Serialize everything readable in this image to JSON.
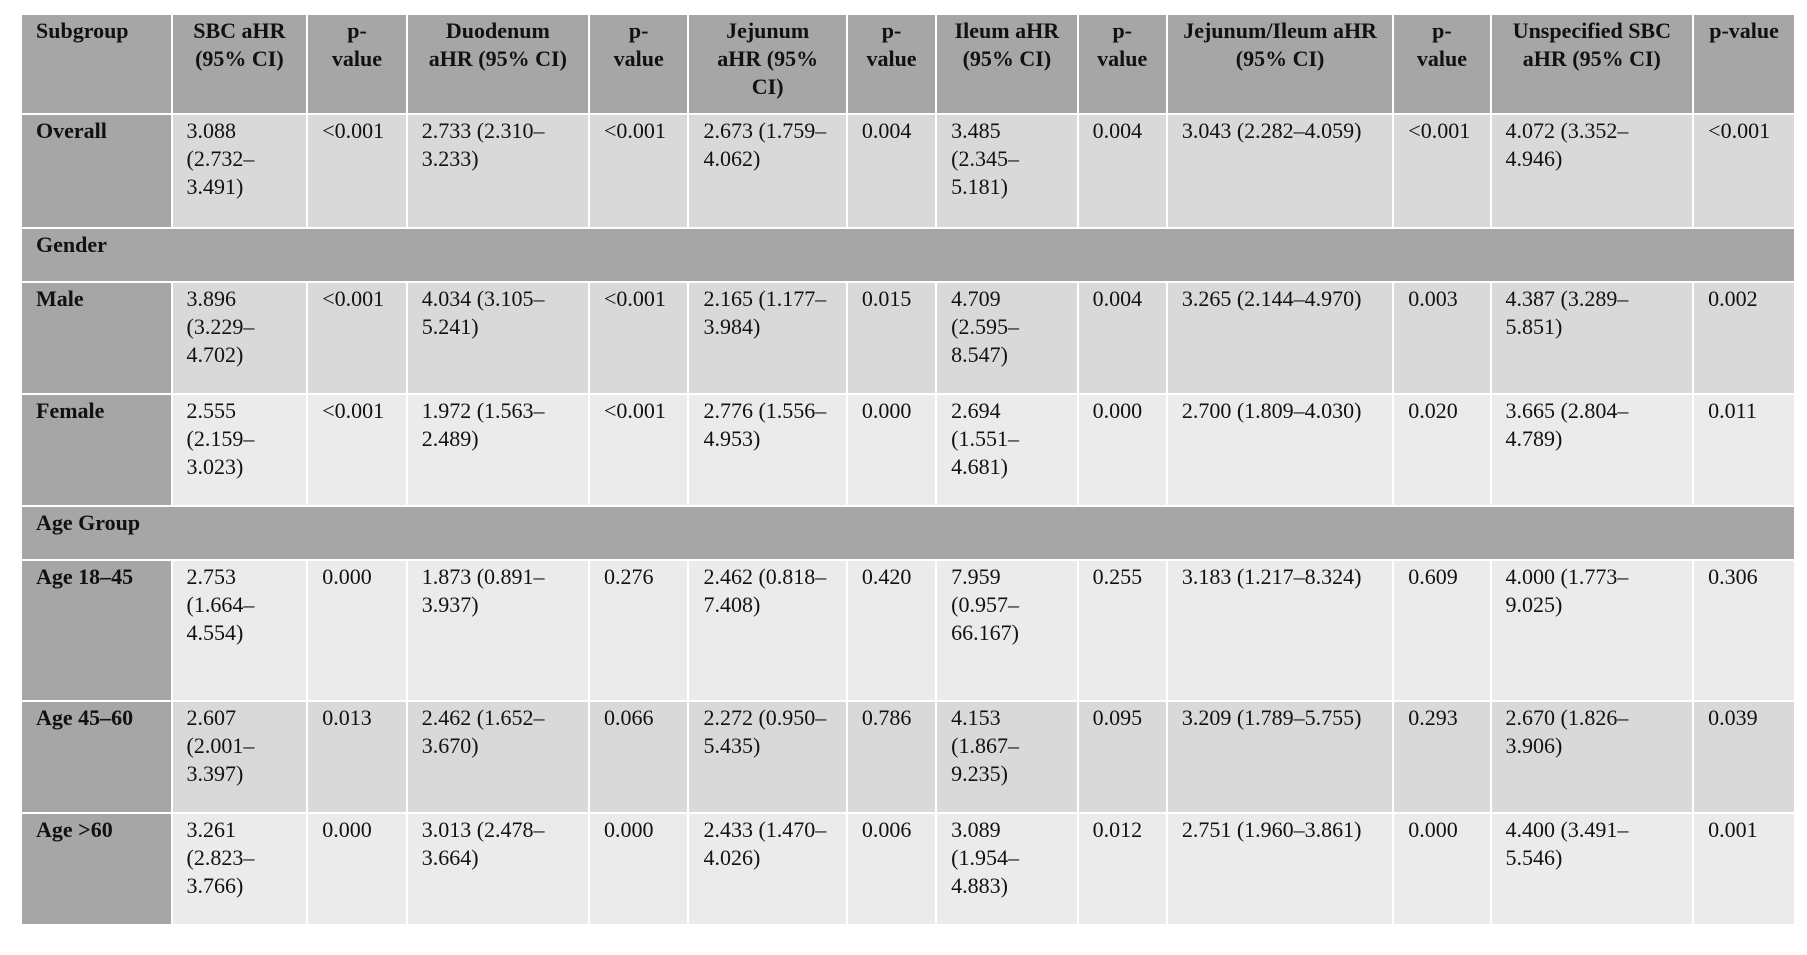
{
  "headers": [
    "Subgroup",
    "SBC aHR (95% CI)",
    "p-value",
    "Duodenum aHR (95% CI)",
    "p-value",
    "Jejunum aHR (95% CI)",
    "p-value",
    "Ileum aHR (95% CI)",
    "p-value",
    "Jejunum/Ileum aHR (95% CI)",
    "p-value",
    "Unspecified SBC aHR (95% CI)",
    "p-value"
  ],
  "rows": {
    "overall": [
      "Overall",
      "3.088 (2.732–3.491)",
      "<0.001",
      "2.733 (2.310–3.233)",
      "<0.001",
      "2.673 (1.759–4.062)",
      "0.004",
      "3.485 (2.345–5.181)",
      "0.004",
      "3.043 (2.282–4.059)",
      "<0.001",
      "4.072 (3.352–4.946)",
      "<0.001"
    ],
    "gender_section": "Gender",
    "male": [
      "Male",
      "3.896 (3.229–4.702)",
      "<0.001",
      "4.034 (3.105–5.241)",
      "<0.001",
      "2.165 (1.177–3.984)",
      "0.015",
      "4.709 (2.595–8.547)",
      "0.004",
      "3.265 (2.144–4.970)",
      "0.003",
      "4.387 (3.289–5.851)",
      "0.002"
    ],
    "female": [
      "Female",
      "2.555 (2.159–3.023)",
      "<0.001",
      "1.972 (1.563–2.489)",
      "<0.001",
      "2.776 (1.556–4.953)",
      "0.000",
      "2.694 (1.551–4.681)",
      "0.000",
      "2.700 (1.809–4.030)",
      "0.020",
      "3.665 (2.804–4.789)",
      "0.011"
    ],
    "age_section": "Age Group",
    "age_18_45": [
      "Age 18–45",
      "2.753 (1.664–4.554)",
      "0.000",
      "1.873 (0.891–3.937)",
      "0.276",
      "2.462 (0.818–7.408)",
      "0.420",
      "7.959 (0.957–66.167)",
      "0.255",
      "3.183 (1.217–8.324)",
      "0.609",
      "4.000 (1.773–9.025)",
      "0.306"
    ],
    "age_45_60": [
      "Age 45–60",
      "2.607 (2.001–3.397)",
      "0.013",
      "2.462 (1.652–3.670)",
      "0.066",
      "2.272 (0.950–5.435)",
      "0.786",
      "4.153 (1.867–9.235)",
      "0.095",
      "3.209 (1.789–5.755)",
      "0.293",
      "2.670 (1.826–3.906)",
      "0.039"
    ],
    "age_60_plus": [
      "Age >60",
      "3.261 (2.823–3.766)",
      "0.000",
      "3.013 (2.478–3.664)",
      "0.000",
      "2.433 (1.470–4.026)",
      "0.006",
      "3.089 (1.954–4.883)",
      "0.012",
      "2.751 (1.960–3.861)",
      "0.000",
      "4.400 (3.491–5.546)",
      "0.001"
    ]
  },
  "colors": {
    "header_bg": "#a6a6a6",
    "row_dark": "#d9d9d9",
    "row_light": "#ebebeb"
  }
}
